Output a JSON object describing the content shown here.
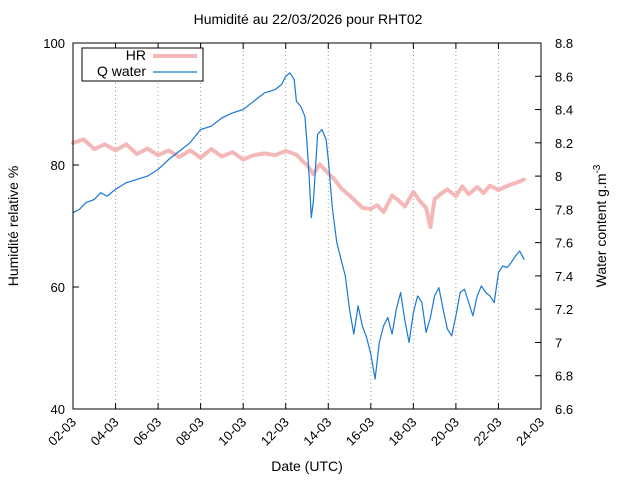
{
  "chart_data": {
    "type": "line",
    "title": "Humidité au 22/03/2026 pour RHT02",
    "xlabel": "Date (UTC)",
    "ylabel": "Humidité relative %",
    "y2label": "Water content g.m",
    "y2label_sup": "-3",
    "x_ticks": [
      "02-03",
      "04-03",
      "06-03",
      "08-03",
      "10-03",
      "12-03",
      "14-03",
      "16-03",
      "18-03",
      "20-03",
      "22-03",
      "24-03"
    ],
    "xlim_days": [
      2,
      24
    ],
    "ylim": [
      40,
      100
    ],
    "y_ticks": [
      40,
      60,
      80,
      100
    ],
    "y2lim": [
      6.6,
      8.8
    ],
    "y2_ticks": [
      6.6,
      6.8,
      7,
      7.2,
      7.4,
      7.6,
      7.8,
      8,
      8.2,
      8.4,
      8.6,
      8.8
    ],
    "grid": "vertical-dotted",
    "legend_position": "top-left",
    "series": [
      {
        "name": "HR",
        "axis": "left",
        "color": "#f4b8b8",
        "x": [
          2.0,
          2.5,
          3.0,
          3.5,
          4.0,
          4.5,
          5.0,
          5.5,
          6.0,
          6.5,
          7.0,
          7.5,
          8.0,
          8.5,
          9.0,
          9.5,
          10.0,
          10.5,
          11.0,
          11.5,
          12.0,
          12.5,
          12.8,
          13.0,
          13.3,
          13.6,
          14.0,
          14.3,
          14.6,
          15.0,
          15.3,
          15.6,
          16.0,
          16.3,
          16.6,
          17.0,
          17.3,
          17.6,
          18.0,
          18.3,
          18.6,
          18.8,
          19.0,
          19.3,
          19.6,
          20.0,
          20.3,
          20.6,
          21.0,
          21.3,
          21.6,
          22.0,
          22.5,
          23.0,
          23.2
        ],
        "values": [
          83.6,
          84.2,
          82.6,
          83.4,
          82.4,
          83.4,
          81.8,
          82.7,
          81.6,
          82.4,
          81.3,
          82.4,
          81.2,
          82.6,
          81.4,
          82.1,
          80.9,
          81.6,
          81.9,
          81.6,
          82.3,
          81.7,
          80.6,
          80.0,
          78.5,
          80.1,
          78.6,
          77.6,
          76.2,
          75.0,
          74.0,
          73.0,
          72.8,
          73.4,
          72.3,
          75.0,
          74.2,
          73.2,
          75.6,
          74.1,
          73.0,
          69.8,
          74.4,
          75.3,
          76.0,
          74.9,
          76.5,
          75.2,
          76.4,
          75.4,
          76.6,
          75.9,
          76.7,
          77.3,
          77.6
        ]
      },
      {
        "name": "Q water",
        "axis": "right",
        "color": "#1a78d6",
        "x": [
          2.0,
          2.3,
          2.6,
          3.0,
          3.3,
          3.6,
          4.0,
          4.5,
          5.0,
          5.5,
          6.0,
          6.5,
          7.0,
          7.5,
          8.0,
          8.5,
          9.0,
          9.5,
          10.0,
          10.5,
          11.0,
          11.5,
          11.8,
          12.0,
          12.2,
          12.4,
          12.5,
          12.7,
          12.9,
          13.0,
          13.1,
          13.2,
          13.3,
          13.5,
          13.7,
          13.9,
          14.0,
          14.2,
          14.4,
          14.6,
          14.8,
          15.0,
          15.2,
          15.4,
          15.6,
          15.8,
          16.0,
          16.2,
          16.4,
          16.6,
          16.8,
          17.0,
          17.2,
          17.4,
          17.6,
          17.8,
          18.0,
          18.2,
          18.4,
          18.6,
          18.8,
          19.0,
          19.2,
          19.4,
          19.6,
          19.8,
          20.0,
          20.2,
          20.4,
          20.6,
          20.8,
          21.0,
          21.2,
          21.4,
          21.6,
          21.8,
          22.0,
          22.2,
          22.4,
          22.6,
          22.8,
          23.0,
          23.2
        ],
        "values": [
          7.78,
          7.8,
          7.84,
          7.86,
          7.9,
          7.88,
          7.92,
          7.96,
          7.98,
          8.0,
          8.04,
          8.1,
          8.15,
          8.2,
          8.28,
          8.3,
          8.35,
          8.38,
          8.4,
          8.45,
          8.5,
          8.52,
          8.55,
          8.6,
          8.62,
          8.58,
          8.45,
          8.42,
          8.36,
          8.2,
          8.0,
          7.75,
          7.85,
          8.25,
          8.28,
          8.22,
          8.1,
          7.8,
          7.6,
          7.5,
          7.4,
          7.2,
          7.05,
          7.22,
          7.1,
          7.03,
          6.93,
          6.78,
          7.0,
          7.1,
          7.15,
          7.05,
          7.2,
          7.3,
          7.13,
          7.0,
          7.18,
          7.28,
          7.24,
          7.06,
          7.15,
          7.28,
          7.33,
          7.2,
          7.08,
          7.04,
          7.16,
          7.3,
          7.32,
          7.24,
          7.16,
          7.28,
          7.34,
          7.3,
          7.28,
          7.24,
          7.42,
          7.46,
          7.45,
          7.48,
          7.52,
          7.55,
          7.5
        ]
      }
    ]
  }
}
